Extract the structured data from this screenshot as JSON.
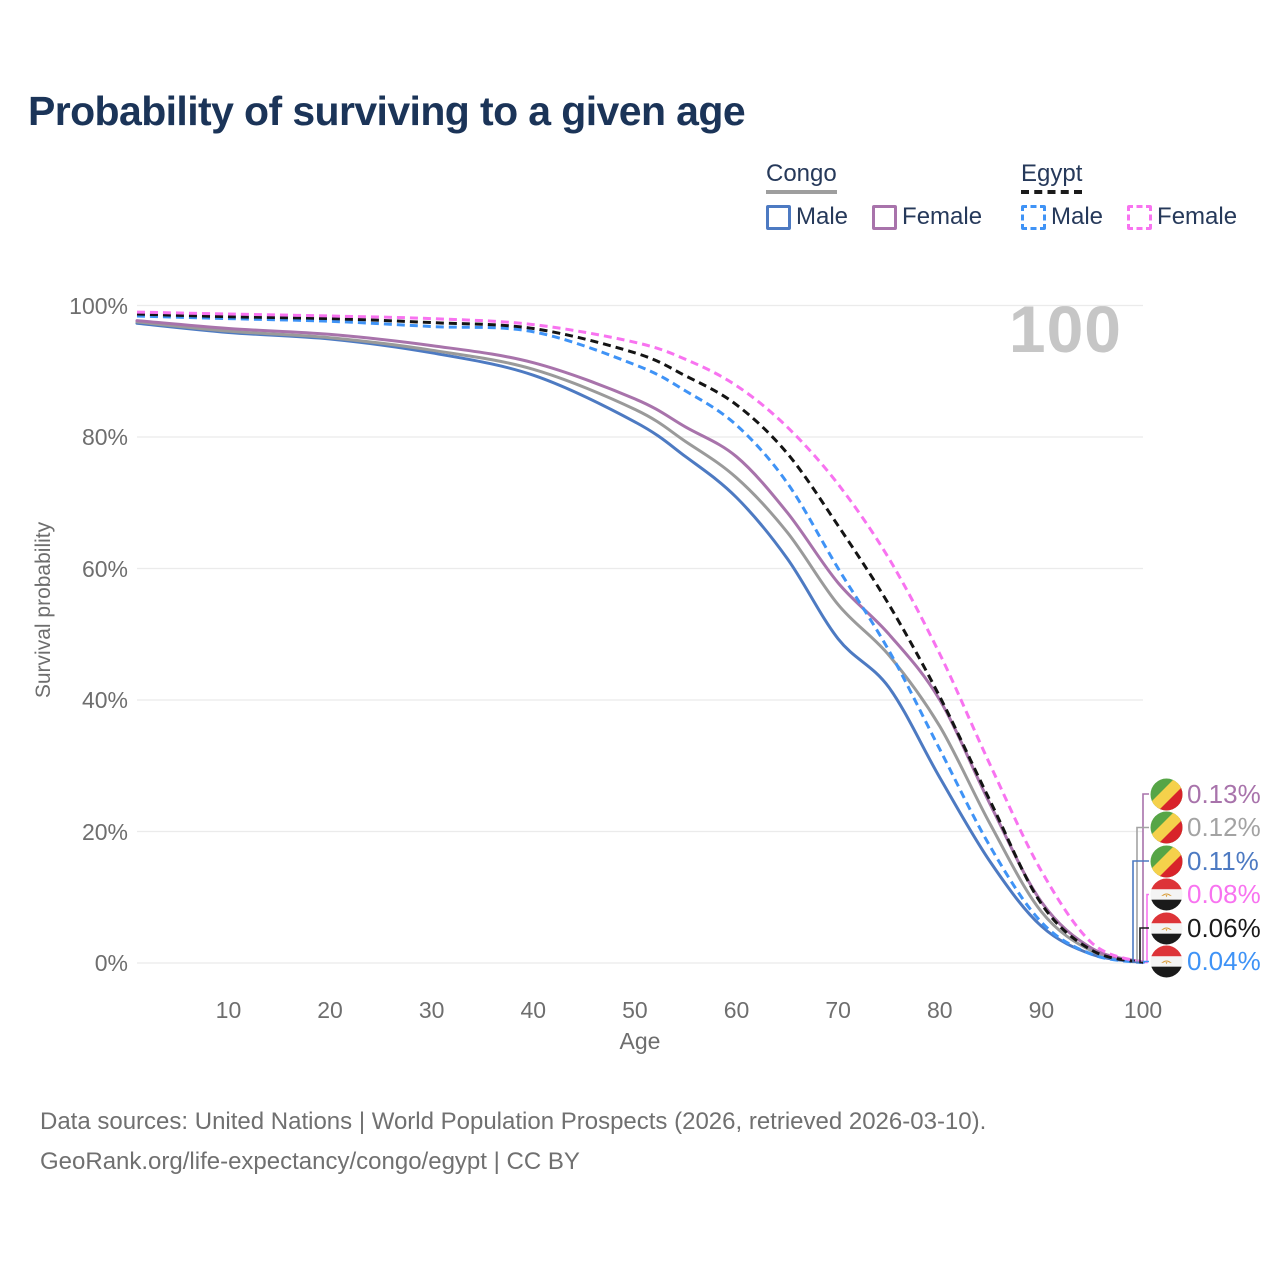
{
  "title": "Probability of surviving to a given age",
  "watermark_age": "100",
  "legend": {
    "groups": [
      {
        "id": "congo",
        "label": "Congo",
        "line_style": "solid",
        "line_color": "#9e9e9e",
        "items": [
          {
            "id": "congo-male",
            "label": "Male",
            "color": "#4d7ac2",
            "dashed": false
          },
          {
            "id": "congo-female",
            "label": "Female",
            "color": "#a873ab",
            "dashed": false
          }
        ]
      },
      {
        "id": "egypt",
        "label": "Egypt",
        "line_style": "dashed",
        "line_color": "#1b1b1b",
        "items": [
          {
            "id": "egypt-male",
            "label": "Male",
            "color": "#3f93f6",
            "dashed": true
          },
          {
            "id": "egypt-female",
            "label": "Female",
            "color": "#f873f0",
            "dashed": true
          }
        ]
      }
    ]
  },
  "chart_data": {
    "type": "line",
    "title": "Probability of surviving to a given age",
    "xlabel": "Age",
    "ylabel": "Survival probability",
    "xlim": [
      1,
      100
    ],
    "ylim_pct": [
      0,
      100
    ],
    "x_ticks": [
      10,
      20,
      30,
      40,
      50,
      60,
      70,
      80,
      90,
      100
    ],
    "y_ticks_pct": [
      0,
      20,
      40,
      60,
      80,
      100
    ],
    "grid": "horizontal",
    "legend_position": "top-right",
    "ages": [
      1,
      10,
      20,
      30,
      40,
      50,
      55,
      60,
      65,
      70,
      75,
      80,
      85,
      90,
      95,
      100
    ],
    "series": [
      {
        "id": "congo-male",
        "name": "Congo Male",
        "color": "#4d7ac2",
        "dash": false,
        "end_label": "0.11%",
        "values_pct": [
          97.3,
          95.9,
          94.9,
          92.8,
          89.4,
          82.3,
          77.0,
          70.8,
          61.5,
          49.3,
          41.9,
          28.2,
          15.3,
          5.6,
          1.3,
          0.11
        ]
      },
      {
        "id": "congo-total",
        "name": "Congo",
        "color": "#9a9a9a",
        "dash": false,
        "end_label": "0.12%",
        "values_pct": [
          97.5,
          96.1,
          95.1,
          93.2,
          90.3,
          84.2,
          79.3,
          73.8,
          65.5,
          54.5,
          46.8,
          36.0,
          21.0,
          7.8,
          1.8,
          0.12
        ]
      },
      {
        "id": "congo-female",
        "name": "Congo Female",
        "color": "#a873ab",
        "dash": false,
        "end_label": "0.13%",
        "values_pct": [
          97.7,
          96.5,
          95.6,
          93.9,
          91.3,
          85.8,
          81.5,
          77.0,
          68.5,
          57.8,
          50.0,
          40.0,
          24.0,
          9.3,
          2.2,
          0.13
        ]
      },
      {
        "id": "egypt-male",
        "name": "Egypt Male",
        "color": "#3f93f6",
        "dash": true,
        "end_label": "0.04%",
        "values_pct": [
          98.4,
          98.0,
          97.6,
          96.8,
          96.0,
          91.0,
          87.0,
          81.8,
          73.0,
          60.0,
          47.5,
          32.5,
          17.6,
          6.2,
          1.3,
          0.04
        ]
      },
      {
        "id": "egypt-total",
        "name": "Egypt",
        "color": "#141414",
        "dash": true,
        "end_label": "0.06%",
        "values_pct": [
          98.7,
          98.3,
          98.0,
          97.4,
          96.5,
          92.8,
          89.3,
          84.9,
          77.5,
          66.5,
          54.5,
          40.5,
          24.5,
          9.0,
          1.9,
          0.06
        ]
      },
      {
        "id": "egypt-female",
        "name": "Egypt Female",
        "color": "#f873f0",
        "dash": true,
        "end_label": "0.08%",
        "values_pct": [
          99.0,
          98.7,
          98.4,
          98.0,
          97.1,
          94.4,
          91.8,
          87.8,
          81.5,
          72.8,
          61.5,
          47.0,
          30.0,
          14.0,
          3.0,
          0.08
        ]
      }
    ],
    "end_labels": [
      {
        "series": "congo-female",
        "value": "0.13%",
        "value_num": 0.13,
        "color": "#a873ab",
        "flag": "congo"
      },
      {
        "series": "congo-total",
        "value": "0.12%",
        "value_num": 0.12,
        "color": "#a3a3a3",
        "flag": "congo"
      },
      {
        "series": "congo-male",
        "value": "0.11%",
        "value_num": 0.11,
        "color": "#4d7ac2",
        "flag": "congo"
      },
      {
        "series": "egypt-female",
        "value": "0.08%",
        "value_num": 0.08,
        "color": "#f873f0",
        "flag": "egypt"
      },
      {
        "series": "egypt-total",
        "value": "0.06%",
        "value_num": 0.06,
        "color": "#1a1a1a",
        "flag": "egypt"
      },
      {
        "series": "egypt-male",
        "value": "0.04%",
        "value_num": 0.04,
        "color": "#3f93f6",
        "flag": "egypt"
      }
    ]
  },
  "footer": {
    "line1": "Data sources: United Nations | World Population Prospects (2026, retrieved 2026-03-10).",
    "line2": "GeoRank.org/life-expectancy/congo/egypt | CC BY"
  }
}
